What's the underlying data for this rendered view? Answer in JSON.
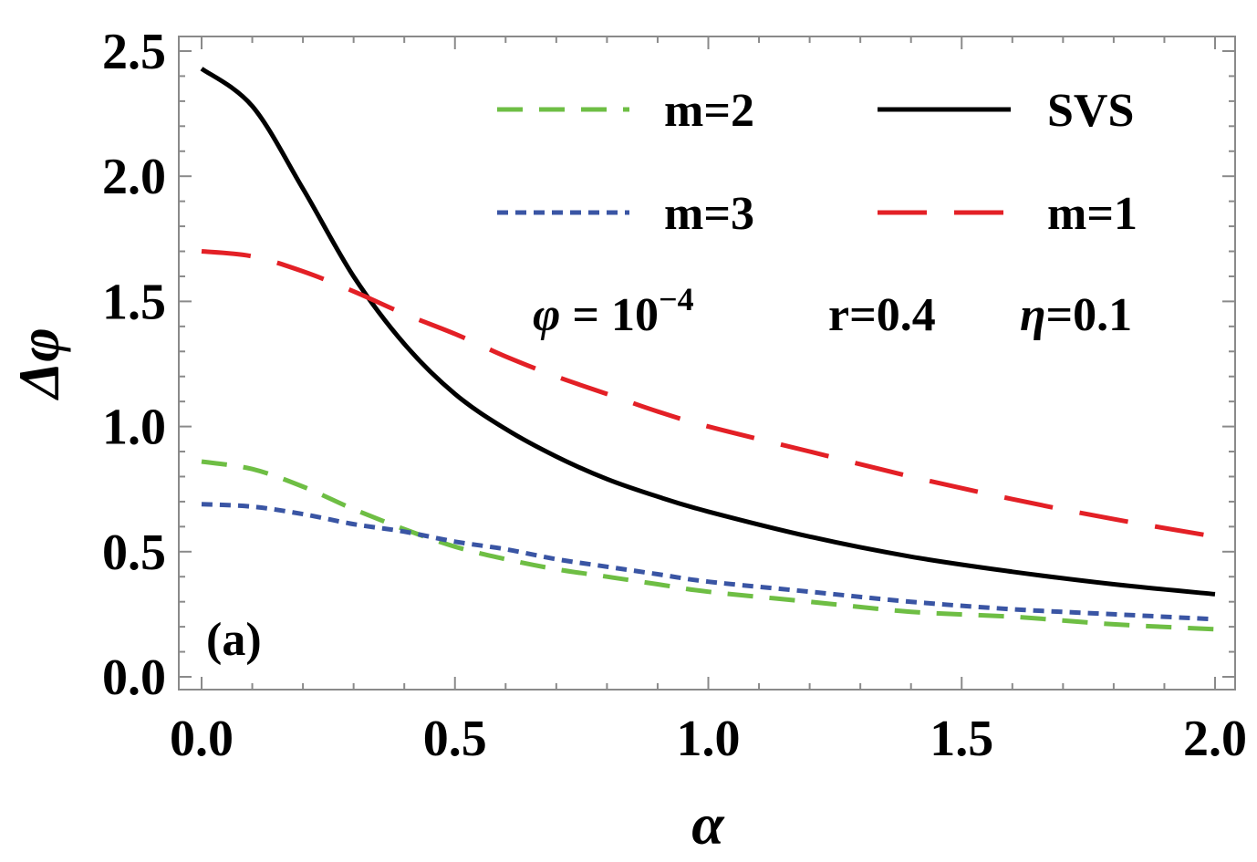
{
  "chart_data": {
    "type": "line",
    "xlabel": "α",
    "ylabel": "Δφ",
    "xlim": [
      0,
      2
    ],
    "ylim": [
      0,
      2.5
    ],
    "x_ticks": [
      "0.0",
      "0.5",
      "1.0",
      "1.5",
      "2.0"
    ],
    "y_ticks": [
      "0.0",
      "0.5",
      "1.0",
      "1.5",
      "2.0",
      "2.5"
    ],
    "grid": false,
    "legend_position": "top-right",
    "panel_label": "(a)",
    "parameters": {
      "phi_symbol": "φ",
      "phi_text": " = 10",
      "phi_exponent": "−4",
      "r_text": "r=0.4",
      "eta_symbol": "η",
      "eta_text": "=0.1"
    },
    "x": [
      0,
      0.1,
      0.2,
      0.3,
      0.4,
      0.5,
      0.6,
      0.7,
      0.8,
      0.9,
      1.0,
      1.2,
      1.4,
      1.6,
      1.8,
      2.0
    ],
    "series": [
      {
        "name": "m=2",
        "color": "#6ebe44",
        "dash": "28 18",
        "legend_order": 0,
        "values": [
          0.86,
          0.83,
          0.76,
          0.67,
          0.59,
          0.52,
          0.47,
          0.43,
          0.4,
          0.37,
          0.34,
          0.3,
          0.26,
          0.24,
          0.21,
          0.19
        ]
      },
      {
        "name": "SVS",
        "color": "#000000",
        "dash": "",
        "legend_order": 1,
        "values": [
          2.43,
          2.28,
          1.95,
          1.6,
          1.33,
          1.13,
          0.99,
          0.88,
          0.79,
          0.72,
          0.66,
          0.56,
          0.48,
          0.42,
          0.37,
          0.33
        ]
      },
      {
        "name": "m=3",
        "color": "#3a55a4",
        "dash": "12 8",
        "legend_order": 2,
        "values": [
          0.69,
          0.68,
          0.65,
          0.61,
          0.58,
          0.54,
          0.51,
          0.47,
          0.44,
          0.41,
          0.38,
          0.34,
          0.3,
          0.27,
          0.25,
          0.23
        ]
      },
      {
        "name": "m=1",
        "color": "#e32026",
        "dash": "54 30",
        "legend_order": 3,
        "values": [
          1.7,
          1.68,
          1.62,
          1.54,
          1.45,
          1.37,
          1.28,
          1.2,
          1.13,
          1.06,
          1.0,
          0.9,
          0.8,
          0.71,
          0.63,
          0.56
        ]
      }
    ]
  }
}
